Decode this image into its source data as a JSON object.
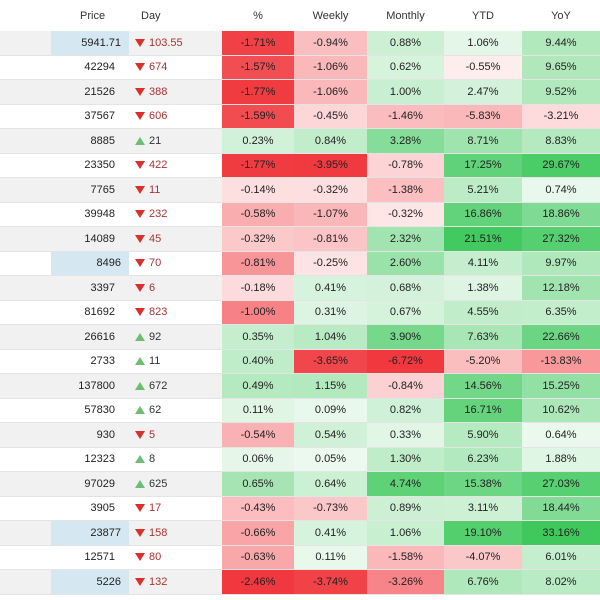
{
  "columns": {
    "price": "Price",
    "day": "Day",
    "pct": "%",
    "weekly": "Weekly",
    "monthly": "Monthly",
    "ytd": "YTD",
    "yoy": "YoY"
  },
  "colors": {
    "row_odd": "#f1f1f1",
    "row_even": "#ffffff",
    "price_highlight": "#d5e8f2",
    "arrow_down": "#d9302c",
    "arrow_up": "#6cbf72"
  },
  "rows": [
    {
      "price": "5941.71",
      "price_hl": true,
      "dir": "down",
      "day": "103.55",
      "pct": "-1.71%",
      "weekly": "-0.94%",
      "monthly": "0.88%",
      "ytd": "1.06%",
      "yoy": "9.44%"
    },
    {
      "price": "42294",
      "price_hl": false,
      "dir": "down",
      "day": "674",
      "pct": "-1.57%",
      "weekly": "-1.06%",
      "monthly": "0.62%",
      "ytd": "-0.55%",
      "yoy": "9.65%"
    },
    {
      "price": "21526",
      "price_hl": false,
      "dir": "down",
      "day": "388",
      "pct": "-1.77%",
      "weekly": "-1.06%",
      "monthly": "1.00%",
      "ytd": "2.47%",
      "yoy": "9.52%"
    },
    {
      "price": "37567",
      "price_hl": false,
      "dir": "down",
      "day": "606",
      "pct": "-1.59%",
      "weekly": "-0.45%",
      "monthly": "-1.46%",
      "ytd": "-5.83%",
      "yoy": "-3.21%"
    },
    {
      "price": "8885",
      "price_hl": false,
      "dir": "up",
      "day": "21",
      "pct": "0.23%",
      "weekly": "0.84%",
      "monthly": "3.28%",
      "ytd": "8.71%",
      "yoy": "8.83%"
    },
    {
      "price": "23350",
      "price_hl": false,
      "dir": "down",
      "day": "422",
      "pct": "-1.77%",
      "weekly": "-3.95%",
      "monthly": "-0.78%",
      "ytd": "17.25%",
      "yoy": "29.67%"
    },
    {
      "price": "7765",
      "price_hl": false,
      "dir": "down",
      "day": "11",
      "pct": "-0.14%",
      "weekly": "-0.32%",
      "monthly": "-1.38%",
      "ytd": "5.21%",
      "yoy": "0.74%"
    },
    {
      "price": "39948",
      "price_hl": false,
      "dir": "down",
      "day": "232",
      "pct": "-0.58%",
      "weekly": "-1.07%",
      "monthly": "-0.32%",
      "ytd": "16.86%",
      "yoy": "18.86%"
    },
    {
      "price": "14089",
      "price_hl": false,
      "dir": "down",
      "day": "45",
      "pct": "-0.32%",
      "weekly": "-0.81%",
      "monthly": "2.32%",
      "ytd": "21.51%",
      "yoy": "27.32%"
    },
    {
      "price": "8496",
      "price_hl": true,
      "dir": "down",
      "day": "70",
      "pct": "-0.81%",
      "weekly": "-0.25%",
      "monthly": "2.60%",
      "ytd": "4.11%",
      "yoy": "9.97%"
    },
    {
      "price": "3397",
      "price_hl": false,
      "dir": "down",
      "day": "6",
      "pct": "-0.18%",
      "weekly": "0.41%",
      "monthly": "0.68%",
      "ytd": "1.38%",
      "yoy": "12.18%"
    },
    {
      "price": "81692",
      "price_hl": false,
      "dir": "down",
      "day": "823",
      "pct": "-1.00%",
      "weekly": "0.31%",
      "monthly": "0.67%",
      "ytd": "4.55%",
      "yoy": "6.35%"
    },
    {
      "price": "26616",
      "price_hl": false,
      "dir": "up",
      "day": "92",
      "pct": "0.35%",
      "weekly": "1.04%",
      "monthly": "3.90%",
      "ytd": "7.63%",
      "yoy": "22.66%"
    },
    {
      "price": "2733",
      "price_hl": false,
      "dir": "up",
      "day": "11",
      "pct": "0.40%",
      "weekly": "-3.65%",
      "monthly": "-6.72%",
      "ytd": "-5.20%",
      "yoy": "-13.83%"
    },
    {
      "price": "137800",
      "price_hl": false,
      "dir": "up",
      "day": "672",
      "pct": "0.49%",
      "weekly": "1.15%",
      "monthly": "-0.84%",
      "ytd": "14.56%",
      "yoy": "15.25%"
    },
    {
      "price": "57830",
      "price_hl": false,
      "dir": "up",
      "day": "62",
      "pct": "0.11%",
      "weekly": "0.09%",
      "monthly": "0.82%",
      "ytd": "16.71%",
      "yoy": "10.62%"
    },
    {
      "price": "930",
      "price_hl": false,
      "dir": "down",
      "day": "5",
      "pct": "-0.54%",
      "weekly": "0.54%",
      "monthly": "0.33%",
      "ytd": "5.90%",
      "yoy": "0.64%"
    },
    {
      "price": "12323",
      "price_hl": false,
      "dir": "up",
      "day": "8",
      "pct": "0.06%",
      "weekly": "0.05%",
      "monthly": "1.30%",
      "ytd": "6.23%",
      "yoy": "1.88%"
    },
    {
      "price": "97029",
      "price_hl": false,
      "dir": "up",
      "day": "625",
      "pct": "0.65%",
      "weekly": "0.64%",
      "monthly": "4.74%",
      "ytd": "15.38%",
      "yoy": "27.03%"
    },
    {
      "price": "3905",
      "price_hl": false,
      "dir": "down",
      "day": "17",
      "pct": "-0.43%",
      "weekly": "-0.73%",
      "monthly": "0.89%",
      "ytd": "3.11%",
      "yoy": "18.44%"
    },
    {
      "price": "23877",
      "price_hl": true,
      "dir": "down",
      "day": "158",
      "pct": "-0.66%",
      "weekly": "0.41%",
      "monthly": "1.06%",
      "ytd": "19.10%",
      "yoy": "33.16%"
    },
    {
      "price": "12571",
      "price_hl": false,
      "dir": "down",
      "day": "80",
      "pct": "-0.63%",
      "weekly": "0.11%",
      "monthly": "-1.58%",
      "ytd": "-4.07%",
      "yoy": "6.01%"
    },
    {
      "price": "5226",
      "price_hl": true,
      "dir": "down",
      "day": "132",
      "pct": "-2.46%",
      "weekly": "-3.74%",
      "monthly": "-3.26%",
      "ytd": "6.76%",
      "yoy": "8.02%"
    }
  ]
}
